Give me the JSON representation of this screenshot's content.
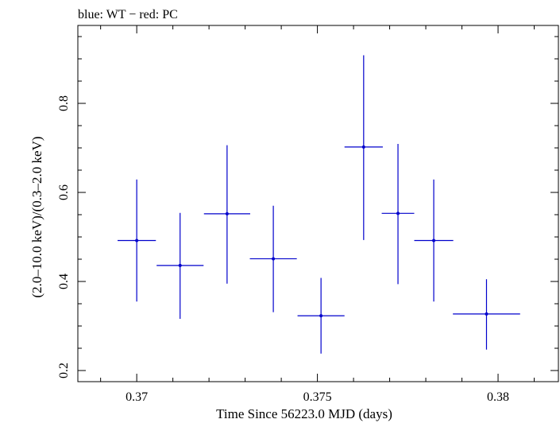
{
  "chart_data": {
    "type": "scatter",
    "title": "blue: WT − red: PC",
    "xlabel": "Time Since 56223.0 MJD (days)",
    "ylabel": "(2.0–10.0 keV)/(0.3–2.0 keV)",
    "xlim": [
      0.36837,
      0.38167
    ],
    "ylim": [
      0.175,
      0.975
    ],
    "xticks": [
      0.37,
      0.375,
      0.38
    ],
    "xtick_labels": [
      "0.37",
      "0.375",
      "0.38"
    ],
    "yticks": [
      0.2,
      0.4,
      0.6,
      0.8
    ],
    "ytick_labels": [
      "0.2",
      "0.4",
      "0.6",
      "0.8"
    ],
    "grid": false,
    "series": [
      {
        "color": "#0000cc",
        "points": [
          {
            "x": 0.37,
            "xerr": 0.00053,
            "y": 0.492,
            "yerr_low": 0.137,
            "yerr_high": 0.137
          },
          {
            "x": 0.3712,
            "xerr": 0.00065,
            "y": 0.436,
            "yerr_low": 0.12,
            "yerr_high": 0.118
          },
          {
            "x": 0.3725,
            "xerr": 0.00064,
            "y": 0.552,
            "yerr_low": 0.157,
            "yerr_high": 0.154
          },
          {
            "x": 0.37378,
            "xerr": 0.00065,
            "y": 0.451,
            "yerr_low": 0.12,
            "yerr_high": 0.119
          },
          {
            "x": 0.3751,
            "xerr": 0.00065,
            "y": 0.323,
            "yerr_low": 0.085,
            "yerr_high": 0.085
          },
          {
            "x": 0.37628,
            "xerr": 0.00053,
            "y": 0.702,
            "yerr_low": 0.209,
            "yerr_high": 0.206
          },
          {
            "x": 0.37723,
            "xerr": 0.00045,
            "y": 0.553,
            "yerr_low": 0.159,
            "yerr_high": 0.156
          },
          {
            "x": 0.37822,
            "xerr": 0.00054,
            "y": 0.492,
            "yerr_low": 0.137,
            "yerr_high": 0.137
          },
          {
            "x": 0.37968,
            "xerr": 0.00093,
            "y": 0.327,
            "yerr_low": 0.08,
            "yerr_high": 0.078
          }
        ]
      }
    ]
  }
}
